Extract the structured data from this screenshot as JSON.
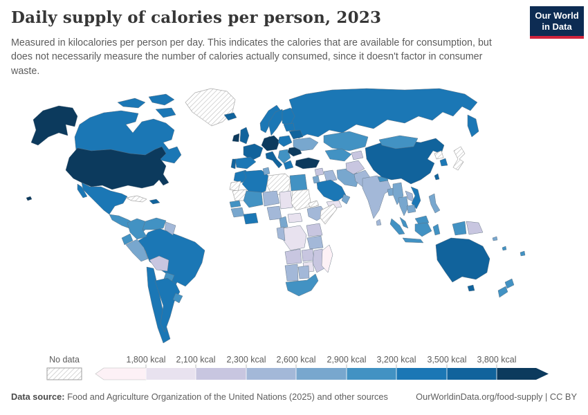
{
  "header": {
    "title": "Daily supply of calories per person, 2023",
    "subtitle": "Measured in kilocalories per person per day. This indicates the calories that are available for consumption, but does not necessarily measure the number of calories actually consumed, since it doesn't factor in consumer waste.",
    "logo": {
      "line1": "Our World",
      "line2": "in Data",
      "bg_color": "#0d2c53",
      "accent_color": "#d0243c"
    }
  },
  "legend": {
    "no_data_label": "No data"
  },
  "footer": {
    "source_label": "Data source:",
    "source_text": " Food and Agriculture Organization of the United Nations (2025) and other sources",
    "right_text": "OurWorldinData.org/food-supply | CC BY"
  },
  "chart_data": {
    "type": "choropleth",
    "title": "Daily supply of calories per person, 2023",
    "year": 2023,
    "unit": "kcal per person per day",
    "legend_labels": [
      "1,800 kcal",
      "2,100 kcal",
      "2,300 kcal",
      "2,600 kcal",
      "2,900 kcal",
      "3,200 kcal",
      "3,500 kcal",
      "3,800 kcal"
    ],
    "legend_thresholds": [
      1800,
      2100,
      2300,
      2600,
      2900,
      3200,
      3500,
      3800
    ],
    "palette": [
      "#fdf1f6",
      "#e8e2ef",
      "#c8c6e0",
      "#a3b8d8",
      "#78a7ce",
      "#4292c3",
      "#1b77b5",
      "#11639c",
      "#0c3a5d"
    ],
    "no_data_style": "hatched",
    "bucket_meaning": "1 = lowest (<1,800 kcal), 9 = highest (>3,800 kcal), 0 = no data",
    "countries": {
      "Russia": 7,
      "Canada": 7,
      "United States": 9,
      "Greenland": 0,
      "Iceland": 8,
      "Mexico": 7,
      "Central America": 6,
      "Cuba": 0,
      "Hispaniola": 8,
      "Hawaii": 9,
      "Brazil": 7,
      "Colombia": 6,
      "Venezuela": 6,
      "Guyanas": 4,
      "Ecuador": 6,
      "Peru": 5,
      "Bolivia": 3,
      "Paraguay": 6,
      "Chile": 7,
      "Argentina": 7,
      "Uruguay": 6,
      "Norway": 7,
      "Sweden": 7,
      "Finland": 7,
      "Denmark": 8,
      "United Kingdom": 8,
      "Ireland": 9,
      "France": 8,
      "Spain": 7,
      "Portugal": 8,
      "Central Europe": 9,
      "Poland": 7,
      "Italy": 8,
      "Balkans": 6,
      "Romania": 9,
      "Greece": 7,
      "Ukraine": 5,
      "Belarus": 8,
      "Baltics": 7,
      "Turkey": 9,
      "Syria": 3,
      "Iraq": 4,
      "Iran": 5,
      "Jordan-Israel": 5,
      "Saudi Arabia": 7,
      "Yemen": 2,
      "Oman": 5,
      "Morocco": 7,
      "Algeria": 7,
      "Tunisia": 5,
      "Libya": 0,
      "Egypt": 6,
      "Western Sahara": 0,
      "Mauritania": 0,
      "Senegal": 6,
      "Guinea": 5,
      "Ivory Coast-Ghana": 7,
      "Mali": 6,
      "Niger": 4,
      "Chad": 2,
      "Sudan": 0,
      "Eritrea": 0,
      "Ethiopia": 4,
      "Somalia": 0,
      "Nigeria": 4,
      "Cameroon": 5,
      "Central African Republic": 2,
      "DR Congo": 2,
      "Gabon-Congo": 4,
      "Uganda-Kenya": 3,
      "Tanzania": 4,
      "Angola": 3,
      "Zambia": 3,
      "Mozambique": 3,
      "Zimbabwe": 2,
      "Namibia": 4,
      "Botswana": 4,
      "South Africa": 6,
      "Madagascar": 1,
      "Kazakhstan": 6,
      "Uzbekistan-Turkmenistan": 6,
      "Kyrgyzstan-Tajikistan": 3,
      "Afghanistan": 3,
      "Pakistan": 4,
      "India": 4,
      "Nepal": 6,
      "Bangladesh": 5,
      "Sri Lanka": 4,
      "Myanmar": 5,
      "Thailand": 5,
      "Laos": 4,
      "Vietnam": 7,
      "Cambodia": 5,
      "Malaysia": 6,
      "Indonesia": 6,
      "Papua New Guinea": 3,
      "Philippines": 5,
      "China": 8,
      "Mongolia": 6,
      "North Korea": 0,
      "South Korea": 7,
      "Japan": 0,
      "Taiwan": 8,
      "Australia": 8,
      "Tasmania": 8,
      "New Zealand": 6,
      "Fiji": 6,
      "Solomon Islands": 5,
      "Vanuatu": 6
    }
  }
}
